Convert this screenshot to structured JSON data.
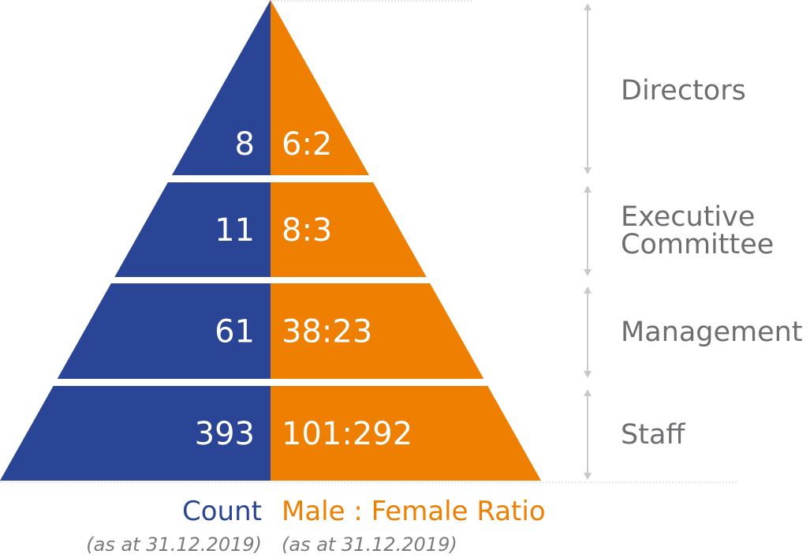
{
  "colors": {
    "count": "#2a4596",
    "ratio": "#ee7f00",
    "label": "#6d6e71",
    "arrow": "#c9c9c9"
  },
  "levels": [
    {
      "label_lines": [
        "Directors"
      ],
      "count": "8",
      "ratio": "6:2"
    },
    {
      "label_lines": [
        "Executive",
        "Committee"
      ],
      "count": "11",
      "ratio": "8:3"
    },
    {
      "label_lines": [
        "Management"
      ],
      "count": "61",
      "ratio": "38:23"
    },
    {
      "label_lines": [
        "Staff"
      ],
      "count": "393",
      "ratio": "101:292"
    }
  ],
  "legend": {
    "count_title": "Count",
    "ratio_title": "Male : Female Ratio",
    "count_date": "(as at 31.12.2019)",
    "ratio_date": "(as at 31.12.2019)"
  }
}
